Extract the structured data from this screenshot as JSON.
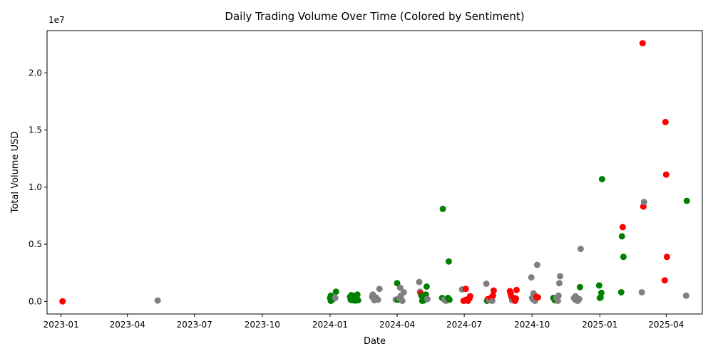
{
  "chart_data": {
    "type": "scatter",
    "title": "Daily Trading Volume Over Time (Colored by Sentiment)",
    "xlabel": "Date",
    "ylabel": "Total Volume USD",
    "y_offset_label": "1e7",
    "x_range": [
      "2022-12-13",
      "2025-05-20"
    ],
    "ylim": [
      -1100000,
      23700000
    ],
    "x_ticks": [
      "2023-01-01",
      "2023-04-01",
      "2023-07-01",
      "2023-10-01",
      "2024-01-01",
      "2024-04-01",
      "2024-07-01",
      "2024-10-01",
      "2025-01-01",
      "2025-04-01"
    ],
    "x_tick_labels": [
      "2023-01",
      "2023-04",
      "2023-07",
      "2023-10",
      "2024-01",
      "2024-04",
      "2024-07",
      "2024-10",
      "2025-01",
      "2025-04"
    ],
    "y_ticks": [
      0,
      5000000,
      10000000,
      15000000,
      20000000
    ],
    "y_tick_labels": [
      "0.0",
      "0.5",
      "1.0",
      "1.5",
      "2.0"
    ],
    "grid": false,
    "legend": "none",
    "colors": {
      "red": "#ff0000",
      "green": "#008000",
      "gray": "#808080"
    },
    "points": [
      {
        "x": "2023-01-03",
        "y": 10000,
        "c": "red"
      },
      {
        "x": "2023-05-12",
        "y": 80000,
        "c": "gray"
      },
      {
        "x": "2024-01-01",
        "y": 300000,
        "c": "green"
      },
      {
        "x": "2024-01-02",
        "y": 500000,
        "c": "green"
      },
      {
        "x": "2024-01-02",
        "y": 50000,
        "c": "green"
      },
      {
        "x": "2024-01-03",
        "y": 100000,
        "c": "green"
      },
      {
        "x": "2024-01-05",
        "y": 200000,
        "c": "green"
      },
      {
        "x": "2024-01-08",
        "y": 300000,
        "c": "gray"
      },
      {
        "x": "2024-01-09",
        "y": 850000,
        "c": "green"
      },
      {
        "x": "2024-01-28",
        "y": 400000,
        "c": "green"
      },
      {
        "x": "2024-01-29",
        "y": 150000,
        "c": "green"
      },
      {
        "x": "2024-01-30",
        "y": 550000,
        "c": "green"
      },
      {
        "x": "2024-01-31",
        "y": 100000,
        "c": "green"
      },
      {
        "x": "2024-02-02",
        "y": 300000,
        "c": "green"
      },
      {
        "x": "2024-02-04",
        "y": 80000,
        "c": "green"
      },
      {
        "x": "2024-02-06",
        "y": 400000,
        "c": "green"
      },
      {
        "x": "2024-02-07",
        "y": 600000,
        "c": "green"
      },
      {
        "x": "2024-02-08",
        "y": 100000,
        "c": "green"
      },
      {
        "x": "2024-02-27",
        "y": 400000,
        "c": "gray"
      },
      {
        "x": "2024-02-28",
        "y": 600000,
        "c": "gray"
      },
      {
        "x": "2024-03-01",
        "y": 100000,
        "c": "gray"
      },
      {
        "x": "2024-03-03",
        "y": 350000,
        "c": "gray"
      },
      {
        "x": "2024-03-06",
        "y": 150000,
        "c": "gray"
      },
      {
        "x": "2024-03-08",
        "y": 1100000,
        "c": "gray"
      },
      {
        "x": "2024-03-30",
        "y": 150000,
        "c": "gray"
      },
      {
        "x": "2024-04-01",
        "y": 1600000,
        "c": "green"
      },
      {
        "x": "2024-04-02",
        "y": 150000,
        "c": "green"
      },
      {
        "x": "2024-04-04",
        "y": 300000,
        "c": "gray"
      },
      {
        "x": "2024-04-05",
        "y": 1200000,
        "c": "gray"
      },
      {
        "x": "2024-04-06",
        "y": 500000,
        "c": "gray"
      },
      {
        "x": "2024-04-08",
        "y": 50000,
        "c": "gray"
      },
      {
        "x": "2024-04-10",
        "y": 800000,
        "c": "gray"
      },
      {
        "x": "2024-05-01",
        "y": 1700000,
        "c": "gray"
      },
      {
        "x": "2024-05-02",
        "y": 850000,
        "c": "gray"
      },
      {
        "x": "2024-05-03",
        "y": 700000,
        "c": "red"
      },
      {
        "x": "2024-05-04",
        "y": 500000,
        "c": "green"
      },
      {
        "x": "2024-05-05",
        "y": 50000,
        "c": "green"
      },
      {
        "x": "2024-05-07",
        "y": 80000,
        "c": "green"
      },
      {
        "x": "2024-05-10",
        "y": 600000,
        "c": "green"
      },
      {
        "x": "2024-05-11",
        "y": 1300000,
        "c": "green"
      },
      {
        "x": "2024-05-12",
        "y": 200000,
        "c": "gray"
      },
      {
        "x": "2024-06-01",
        "y": 300000,
        "c": "green"
      },
      {
        "x": "2024-06-02",
        "y": 8100000,
        "c": "green"
      },
      {
        "x": "2024-06-04",
        "y": 150000,
        "c": "gray"
      },
      {
        "x": "2024-06-06",
        "y": 50000,
        "c": "gray"
      },
      {
        "x": "2024-06-08",
        "y": 250000,
        "c": "gray"
      },
      {
        "x": "2024-06-09",
        "y": 300000,
        "c": "green"
      },
      {
        "x": "2024-06-10",
        "y": 3500000,
        "c": "green"
      },
      {
        "x": "2024-06-11",
        "y": 150000,
        "c": "green"
      },
      {
        "x": "2024-06-28",
        "y": 1050000,
        "c": "gray"
      },
      {
        "x": "2024-06-30",
        "y": 50000,
        "c": "red"
      },
      {
        "x": "2024-07-02",
        "y": 100000,
        "c": "red"
      },
      {
        "x": "2024-07-03",
        "y": 1100000,
        "c": "red"
      },
      {
        "x": "2024-07-04",
        "y": 150000,
        "c": "red"
      },
      {
        "x": "2024-07-06",
        "y": 50000,
        "c": "red"
      },
      {
        "x": "2024-07-08",
        "y": 250000,
        "c": "red"
      },
      {
        "x": "2024-07-09",
        "y": 450000,
        "c": "red"
      },
      {
        "x": "2024-07-31",
        "y": 1550000,
        "c": "gray"
      },
      {
        "x": "2024-08-01",
        "y": 50000,
        "c": "green"
      },
      {
        "x": "2024-08-02",
        "y": 200000,
        "c": "red"
      },
      {
        "x": "2024-08-04",
        "y": 100000,
        "c": "gray"
      },
      {
        "x": "2024-08-06",
        "y": 300000,
        "c": "red"
      },
      {
        "x": "2024-08-08",
        "y": 50000,
        "c": "gray"
      },
      {
        "x": "2024-08-09",
        "y": 500000,
        "c": "red"
      },
      {
        "x": "2024-08-10",
        "y": 950000,
        "c": "red"
      },
      {
        "x": "2024-09-01",
        "y": 900000,
        "c": "red"
      },
      {
        "x": "2024-09-02",
        "y": 700000,
        "c": "red"
      },
      {
        "x": "2024-09-03",
        "y": 400000,
        "c": "red"
      },
      {
        "x": "2024-09-04",
        "y": 100000,
        "c": "gray"
      },
      {
        "x": "2024-09-06",
        "y": 300000,
        "c": "red"
      },
      {
        "x": "2024-09-08",
        "y": 50000,
        "c": "red"
      },
      {
        "x": "2024-09-09",
        "y": 250000,
        "c": "red"
      },
      {
        "x": "2024-09-10",
        "y": 1000000,
        "c": "red"
      },
      {
        "x": "2024-09-30",
        "y": 2100000,
        "c": "gray"
      },
      {
        "x": "2024-10-01",
        "y": 300000,
        "c": "gray"
      },
      {
        "x": "2024-10-02",
        "y": 200000,
        "c": "gray"
      },
      {
        "x": "2024-10-03",
        "y": 700000,
        "c": "gray"
      },
      {
        "x": "2024-10-04",
        "y": 100000,
        "c": "gray"
      },
      {
        "x": "2024-10-05",
        "y": 50000,
        "c": "gray"
      },
      {
        "x": "2024-10-07",
        "y": 400000,
        "c": "red"
      },
      {
        "x": "2024-10-08",
        "y": 3200000,
        "c": "gray"
      },
      {
        "x": "2024-10-09",
        "y": 350000,
        "c": "red"
      },
      {
        "x": "2024-10-30",
        "y": 300000,
        "c": "green"
      },
      {
        "x": "2024-10-31",
        "y": 200000,
        "c": "green"
      },
      {
        "x": "2024-11-01",
        "y": 100000,
        "c": "green"
      },
      {
        "x": "2024-11-03",
        "y": 300000,
        "c": "gray"
      },
      {
        "x": "2024-11-05",
        "y": 50000,
        "c": "gray"
      },
      {
        "x": "2024-11-06",
        "y": 500000,
        "c": "gray"
      },
      {
        "x": "2024-11-07",
        "y": 1600000,
        "c": "gray"
      },
      {
        "x": "2024-11-08",
        "y": 2200000,
        "c": "gray"
      },
      {
        "x": "2024-11-27",
        "y": 300000,
        "c": "gray"
      },
      {
        "x": "2024-11-28",
        "y": 200000,
        "c": "gray"
      },
      {
        "x": "2024-11-29",
        "y": 450000,
        "c": "gray"
      },
      {
        "x": "2024-11-30",
        "y": 100000,
        "c": "gray"
      },
      {
        "x": "2024-12-02",
        "y": 50000,
        "c": "gray"
      },
      {
        "x": "2024-12-04",
        "y": 200000,
        "c": "gray"
      },
      {
        "x": "2024-12-05",
        "y": 1250000,
        "c": "green"
      },
      {
        "x": "2024-12-06",
        "y": 4600000,
        "c": "gray"
      },
      {
        "x": "2024-12-31",
        "y": 1400000,
        "c": "green"
      },
      {
        "x": "2025-01-01",
        "y": 300000,
        "c": "green"
      },
      {
        "x": "2025-01-02",
        "y": 350000,
        "c": "green"
      },
      {
        "x": "2025-01-03",
        "y": 750000,
        "c": "green"
      },
      {
        "x": "2025-01-04",
        "y": 10700000,
        "c": "green"
      },
      {
        "x": "2025-01-30",
        "y": 800000,
        "c": "green"
      },
      {
        "x": "2025-01-31",
        "y": 5700000,
        "c": "green"
      },
      {
        "x": "2025-02-01",
        "y": 6500000,
        "c": "red"
      },
      {
        "x": "2025-02-02",
        "y": 3900000,
        "c": "green"
      },
      {
        "x": "2025-02-27",
        "y": 800000,
        "c": "gray"
      },
      {
        "x": "2025-02-28",
        "y": 22600000,
        "c": "red"
      },
      {
        "x": "2025-03-01",
        "y": 8300000,
        "c": "red"
      },
      {
        "x": "2025-03-02",
        "y": 8700000,
        "c": "gray"
      },
      {
        "x": "2025-03-30",
        "y": 1850000,
        "c": "red"
      },
      {
        "x": "2025-03-31",
        "y": 15700000,
        "c": "red"
      },
      {
        "x": "2025-04-01",
        "y": 11100000,
        "c": "red"
      },
      {
        "x": "2025-04-02",
        "y": 3900000,
        "c": "red"
      },
      {
        "x": "2025-04-28",
        "y": 500000,
        "c": "gray"
      },
      {
        "x": "2025-04-29",
        "y": 8800000,
        "c": "green"
      }
    ]
  }
}
